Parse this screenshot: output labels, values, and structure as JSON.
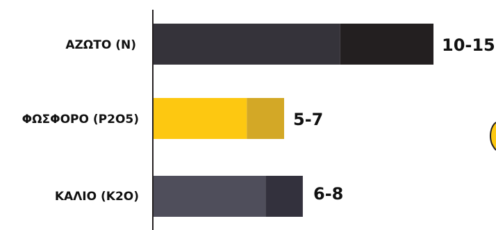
{
  "chart_data": {
    "type": "bar",
    "orientation": "horizontal",
    "stacked": true,
    "categories": [
      "ΑΖΩΤΟ (N)",
      "ΦΩΣΦΟΡΟ (P2O5)",
      "ΚΑΛΙΟ (K2O)"
    ],
    "series": [
      {
        "values": [
          10,
          5,
          6
        ],
        "colors": [
          "#35333a",
          "#fdc811",
          "#4f4e5b"
        ]
      },
      {
        "values": [
          5,
          2,
          2
        ],
        "colors": [
          "#231f20",
          "#d3a826",
          "#33313d"
        ]
      }
    ],
    "value_labels": [
      "10-15",
      "5-7",
      "6-8"
    ],
    "xlim": [
      0,
      15
    ],
    "grid": false,
    "legend": "none"
  }
}
